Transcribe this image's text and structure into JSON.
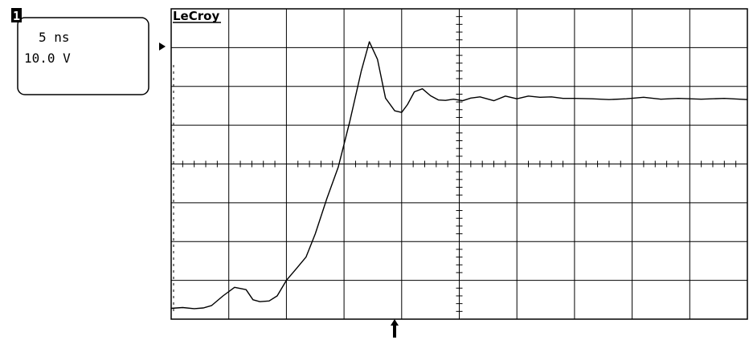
{
  "channel_box": {
    "channel_number": "1",
    "timebase": "5 ns",
    "volts_per_div": "10.0 V"
  },
  "brand": "LeCroy",
  "colors": {
    "trace": "#000000",
    "grid": "#000000",
    "background": "#ffffff"
  },
  "markers": {
    "ground_level_icon": "triangle-right-icon",
    "trigger_position_icon": "arrow-up-icon"
  },
  "chart_data": {
    "type": "line",
    "title": "",
    "xlabel": "",
    "ylabel": "",
    "grid": true,
    "x_unit": "ns",
    "y_unit": "V",
    "divisions": {
      "x": 10,
      "y": 8
    },
    "xlim": [
      -20,
      30
    ],
    "ylim": [
      -41,
      39
    ],
    "series": [
      {
        "x": [
          -20,
          -19,
          -18,
          -17.2,
          -16.5,
          -15.5,
          -14.5,
          -13.5,
          -12.9,
          -12.3,
          -11.5,
          -10.8,
          -10,
          -9.2,
          -8.3,
          -7.5,
          -6.5,
          -5.5,
          -4.5,
          -3.5,
          -2.8,
          -2.1,
          -1.4,
          -0.6,
          0,
          0.5,
          1.1,
          1.8,
          2.5,
          3.2,
          3.8,
          4.5,
          5.3,
          6,
          6.8,
          8,
          9,
          10,
          11,
          12,
          13,
          14,
          15,
          16.5,
          18,
          19.5,
          21,
          22.5,
          24,
          26,
          28,
          30
        ],
        "y": [
          -38.2,
          -38,
          -38.3,
          -38.1,
          -37.5,
          -35,
          -32.8,
          -33.4,
          -36,
          -36.5,
          -36.3,
          -35,
          -31,
          -28.2,
          -25,
          -19,
          -10,
          -1.8,
          10,
          23,
          30.5,
          26,
          16,
          12.7,
          12.3,
          14.3,
          17.6,
          18.4,
          16.6,
          15.5,
          15.4,
          15.7,
          15.3,
          16,
          16.3,
          15.3,
          16.5,
          15.8,
          16.5,
          16.2,
          16.3,
          15.9,
          15.9,
          15.8,
          15.6,
          15.8,
          16.2,
          15.7,
          15.9,
          15.7,
          15.9,
          15.6
        ]
      }
    ]
  }
}
